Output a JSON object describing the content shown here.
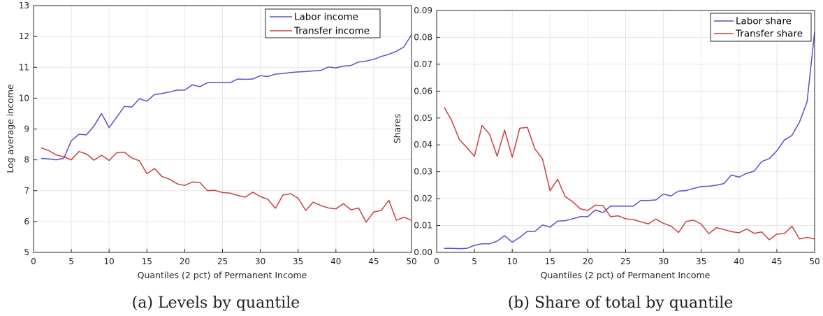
{
  "chart_data": [
    {
      "type": "line",
      "caption": "(a)  Levels by quantile",
      "xlabel": "Quantiles (2 pct) of Permanent Income",
      "ylabel": "Log average income",
      "xlim": [
        0,
        50
      ],
      "ylim": [
        5,
        13
      ],
      "xticks": [
        0,
        5,
        10,
        15,
        20,
        25,
        30,
        35,
        40,
        45,
        50
      ],
      "yticks": [
        5,
        6,
        7,
        8,
        9,
        10,
        11,
        12,
        13
      ],
      "tick_decimals": 0,
      "grid": true,
      "legend_position": "top-right",
      "x": [
        1,
        2,
        3,
        4,
        5,
        6,
        7,
        8,
        9,
        10,
        11,
        12,
        13,
        14,
        15,
        16,
        17,
        18,
        19,
        20,
        21,
        22,
        23,
        24,
        25,
        26,
        27,
        28,
        29,
        30,
        31,
        32,
        33,
        34,
        35,
        36,
        37,
        38,
        39,
        40,
        41,
        42,
        43,
        44,
        45,
        46,
        47,
        48,
        49,
        50
      ],
      "series": [
        {
          "name": "Labor income",
          "color": "#5a4fcf",
          "values": [
            8.05,
            8.03,
            8.0,
            8.05,
            8.62,
            8.83,
            8.81,
            9.1,
            9.5,
            9.04,
            9.38,
            9.73,
            9.71,
            9.98,
            9.9,
            10.12,
            10.15,
            10.2,
            10.26,
            10.26,
            10.43,
            10.37,
            10.5,
            10.5,
            10.5,
            10.5,
            10.62,
            10.61,
            10.62,
            10.73,
            10.7,
            10.78,
            10.8,
            10.83,
            10.85,
            10.86,
            10.88,
            10.9,
            11.01,
            10.98,
            11.04,
            11.06,
            11.17,
            11.2,
            11.26,
            11.35,
            11.42,
            11.52,
            11.66,
            12.06
          ]
        },
        {
          "name": "Transfer income",
          "color": "#c9403f",
          "values": [
            8.39,
            8.3,
            8.16,
            8.1,
            8.0,
            8.27,
            8.19,
            7.99,
            8.15,
            7.98,
            8.23,
            8.25,
            8.06,
            7.97,
            7.55,
            7.72,
            7.46,
            7.37,
            7.22,
            7.17,
            7.28,
            7.27,
            7.0,
            7.01,
            6.94,
            6.92,
            6.85,
            6.79,
            6.95,
            6.81,
            6.72,
            6.43,
            6.86,
            6.9,
            6.76,
            6.36,
            6.63,
            6.52,
            6.44,
            6.41,
            6.58,
            6.38,
            6.44,
            5.98,
            6.31,
            6.36,
            6.69,
            6.04,
            6.14,
            6.04
          ]
        }
      ]
    },
    {
      "type": "line",
      "caption": "(b)  Share of total by quantile",
      "xlabel": "Quantiles (2 pct) of Permanent Income",
      "ylabel": "Shares",
      "xlim": [
        0,
        50
      ],
      "ylim": [
        0,
        0.09
      ],
      "xticks": [
        0,
        5,
        10,
        15,
        20,
        25,
        30,
        35,
        40,
        45,
        50
      ],
      "yticks": [
        0,
        0.01,
        0.02,
        0.03,
        0.04,
        0.05,
        0.06,
        0.07,
        0.08,
        0.09
      ],
      "tick_decimals": 2,
      "grid": true,
      "legend_position": "top-right",
      "x": [
        1,
        2,
        3,
        4,
        5,
        6,
        7,
        8,
        9,
        10,
        11,
        12,
        13,
        14,
        15,
        16,
        17,
        18,
        19,
        20,
        21,
        22,
        23,
        24,
        25,
        26,
        27,
        28,
        29,
        30,
        31,
        32,
        33,
        34,
        35,
        36,
        37,
        38,
        39,
        40,
        41,
        42,
        43,
        44,
        45,
        46,
        47,
        48,
        49,
        50
      ],
      "series": [
        {
          "name": "Labor share",
          "color": "#5a4fcf",
          "values": [
            0.0015,
            0.0015,
            0.0014,
            0.0015,
            0.0026,
            0.0032,
            0.0032,
            0.0042,
            0.0062,
            0.0038,
            0.0056,
            0.0078,
            0.0078,
            0.0102,
            0.0094,
            0.0116,
            0.0118,
            0.0125,
            0.0133,
            0.0133,
            0.0158,
            0.0148,
            0.0172,
            0.0172,
            0.0172,
            0.0172,
            0.0193,
            0.0193,
            0.0195,
            0.0217,
            0.021,
            0.0228,
            0.023,
            0.0238,
            0.0245,
            0.0246,
            0.025,
            0.0256,
            0.0288,
            0.028,
            0.0294,
            0.0302,
            0.0338,
            0.0349,
            0.0378,
            0.0418,
            0.0435,
            0.0485,
            0.056,
            0.082
          ]
        },
        {
          "name": "Transfer share",
          "color": "#c9403f",
          "values": [
            0.054,
            0.049,
            0.042,
            0.039,
            0.0358,
            0.0472,
            0.044,
            0.0358,
            0.0455,
            0.0354,
            0.0462,
            0.0465,
            0.0385,
            0.0348,
            0.0229,
            0.0272,
            0.0208,
            0.0188,
            0.0162,
            0.0156,
            0.0176,
            0.0174,
            0.0133,
            0.0136,
            0.0125,
            0.0122,
            0.0114,
            0.0106,
            0.0124,
            0.0108,
            0.0098,
            0.0074,
            0.0115,
            0.012,
            0.0105,
            0.0069,
            0.0092,
            0.0085,
            0.0077,
            0.0073,
            0.0087,
            0.0071,
            0.0076,
            0.0047,
            0.0068,
            0.007,
            0.0097,
            0.005,
            0.0056,
            0.005
          ]
        }
      ]
    }
  ]
}
